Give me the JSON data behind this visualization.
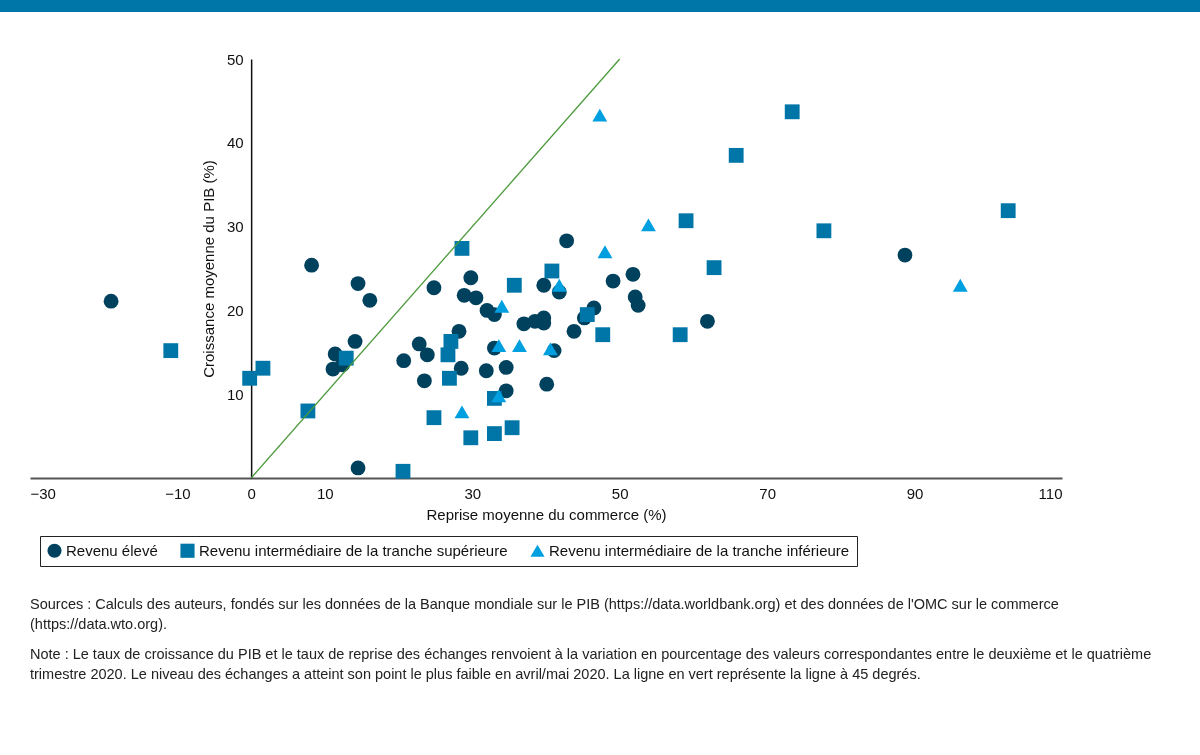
{
  "chart_data": {
    "type": "scatter",
    "xlabel": "Reprise moyenne du commerce (%)",
    "ylabel": "Croissance moyenne du PIB (%)",
    "xlim": [
      -30,
      110
    ],
    "xticks": [
      -30,
      -10,
      0,
      10,
      30,
      50,
      70,
      90,
      110
    ],
    "ylim": [
      0,
      50
    ],
    "yticks": [
      10,
      20,
      30,
      40,
      50
    ],
    "grid": false,
    "legend": "bottom",
    "series": [
      {
        "name": "Revenu élevé",
        "color": "#00415e",
        "marker": "circle",
        "x": [
          -19.0,
          8.2,
          14.5,
          16.1,
          14.1,
          11.1,
          11.4,
          12.4,
          14.5,
          20.7,
          42.8,
          24.8,
          29.8,
          28.9,
          30.5,
          32.0,
          33.0,
          39.7,
          41.8,
          49.1,
          51.8,
          52.1,
          52.5,
          46.5,
          45.2,
          37.0,
          38.5,
          39.7,
          39.7,
          43.8,
          28.2,
          22.8,
          23.9,
          33.0,
          41.1,
          28.5,
          31.9,
          34.6,
          23.5,
          34.6,
          40.1,
          61.9,
          88.7
        ],
        "values": [
          21.1,
          25.4,
          23.2,
          21.2,
          16.3,
          13.0,
          14.8,
          13.5,
          1.2,
          14.0,
          28.3,
          22.7,
          23.9,
          21.8,
          21.5,
          20.0,
          19.5,
          23.0,
          22.2,
          23.5,
          24.3,
          21.6,
          20.6,
          20.3,
          19.1,
          18.4,
          18.7,
          19.1,
          18.5,
          17.5,
          17.5,
          16.0,
          14.7,
          15.5,
          15.2,
          13.1,
          12.8,
          13.2,
          11.6,
          10.4,
          11.2,
          18.7,
          26.6
        ]
      },
      {
        "name": "Revenu intermédiaire de la tranche supérieure",
        "color": "#0076a8",
        "marker": "square",
        "x": [
          -10.9,
          -0.2,
          1.6,
          7.7,
          12.9,
          28.6,
          40.8,
          35.7,
          45.6,
          47.7,
          58.2,
          27.1,
          26.7,
          26.9,
          33.0,
          24.8,
          35.4,
          33.0,
          29.8,
          20.6,
          73.4,
          65.8,
          59.0,
          77.7,
          102.7,
          62.8
        ],
        "values": [
          15.2,
          11.9,
          13.1,
          8.0,
          14.3,
          27.4,
          24.7,
          23.0,
          19.5,
          17.1,
          17.1,
          16.3,
          14.7,
          11.9,
          9.5,
          7.2,
          6.0,
          5.3,
          4.8,
          0.8,
          43.7,
          38.5,
          30.7,
          29.5,
          31.9,
          25.1
        ]
      },
      {
        "name": "Revenu intermédiaire de la tranche inférieure",
        "color": "#009fe0",
        "marker": "triangle",
        "x": [
          47.3,
          53.9,
          48.0,
          96.2,
          41.8,
          34.0,
          33.6,
          36.4,
          40.6,
          33.6,
          28.6
        ],
        "values": [
          43.3,
          30.2,
          27.0,
          23.0,
          23.0,
          20.5,
          15.8,
          15.8,
          15.4,
          9.8,
          7.9
        ]
      },
      {
        "type": "line",
        "color": "#4c9a3c",
        "x": [
          0,
          50
        ],
        "values": [
          0,
          50
        ]
      }
    ],
    "annotations": [
      "Sources : Calculs des auteurs, fondés sur les données de la Banque mondiale sur le PIB (https://data.worldbank.org) et des données de l'OMC sur le commerce (https://data.wto.org).",
      "Note : Le taux de croissance du PIB et le taux de reprise des échanges renvoient à la variation en pourcentage des valeurs correspondantes entre le deuxième et le quatrième trimestre 2020. Le niveau des échanges a atteint son point le plus faible en avril/mai 2020. La ligne en vert représente la ligne à 45 degrés."
    ]
  }
}
